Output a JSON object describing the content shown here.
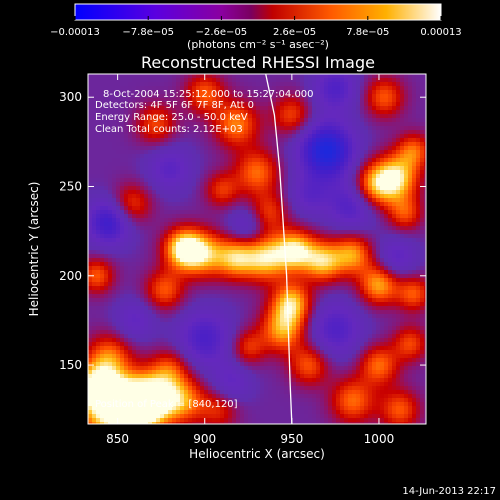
{
  "colorbar": {
    "tick_labels": [
      "−0.00013",
      "−7.8e−05",
      "−2.6e−05",
      "2.6e−05",
      "7.8e−05",
      "0.00013"
    ],
    "tick_values": [
      -0.00013,
      -7.8e-05,
      -2.6e-05,
      2.6e-05,
      7.8e-05,
      0.00013
    ],
    "range": [
      -0.00013,
      0.00013
    ],
    "units": "(photons cm⁻² s⁻¹ asec⁻²)",
    "colors": [
      "#0000ff",
      "#7a00c8",
      "#cc0000",
      "#ff6600",
      "#ffcc00",
      "#ffffff"
    ]
  },
  "chart_data": {
    "type": "heatmap",
    "title": "Reconstructed RHESSI Image",
    "xlabel": "Heliocentric X (arcsec)",
    "ylabel": "Heliocentric Y (arcsec)",
    "xlim": [
      833,
      1027
    ],
    "ylim": [
      117,
      313
    ],
    "x_ticks": [
      850,
      900,
      950,
      1000
    ],
    "y_ticks": [
      150,
      200,
      250,
      300
    ],
    "x_tick_labels": [
      "850",
      "900",
      "950",
      "1000"
    ],
    "y_tick_labels": [
      "150",
      "200",
      "250",
      "300"
    ],
    "annotations": [
      "8-Oct-2004 15:25:12.000 to 15:27:04.000",
      "Detectors: 4F 5F 6F 7F 8F, Att 0",
      "Energy Range: 25.0 - 50.0 keV",
      "Clean    Total counts: 2.12E+03"
    ],
    "peak_label": "Position of Peak = [840,120]",
    "peak_position": [
      840,
      120
    ],
    "limb_points": [
      [
        935,
        313
      ],
      [
        940,
        290
      ],
      [
        943,
        260
      ],
      [
        945,
        230
      ],
      [
        947,
        200
      ],
      [
        948,
        170
      ],
      [
        949,
        140
      ],
      [
        950,
        117
      ]
    ],
    "blobs": [
      {
        "x": 848,
        "y": 125,
        "r": 14,
        "v": 1.0
      },
      {
        "x": 862,
        "y": 127,
        "r": 10,
        "v": 0.85
      },
      {
        "x": 838,
        "y": 138,
        "r": 9,
        "v": 0.8
      },
      {
        "x": 872,
        "y": 132,
        "r": 10,
        "v": 0.7
      },
      {
        "x": 888,
        "y": 130,
        "r": 9,
        "v": 0.6
      },
      {
        "x": 845,
        "y": 155,
        "r": 9,
        "v": 0.55
      },
      {
        "x": 880,
        "y": 148,
        "r": 8,
        "v": 0.45
      },
      {
        "x": 908,
        "y": 125,
        "r": 8,
        "v": 0.4
      },
      {
        "x": 888,
        "y": 215,
        "r": 8,
        "v": 1.0
      },
      {
        "x": 900,
        "y": 212,
        "r": 9,
        "v": 0.7
      },
      {
        "x": 918,
        "y": 210,
        "r": 8,
        "v": 0.75
      },
      {
        "x": 935,
        "y": 210,
        "r": 9,
        "v": 0.85
      },
      {
        "x": 952,
        "y": 214,
        "r": 8,
        "v": 0.9
      },
      {
        "x": 968,
        "y": 208,
        "r": 8,
        "v": 0.8
      },
      {
        "x": 985,
        "y": 212,
        "r": 8,
        "v": 0.7
      },
      {
        "x": 877,
        "y": 192,
        "r": 8,
        "v": 0.55
      },
      {
        "x": 900,
        "y": 302,
        "r": 8,
        "v": 0.55
      },
      {
        "x": 918,
        "y": 285,
        "r": 9,
        "v": 0.65
      },
      {
        "x": 930,
        "y": 258,
        "r": 9,
        "v": 0.6
      },
      {
        "x": 936,
        "y": 235,
        "r": 8,
        "v": 0.5
      },
      {
        "x": 910,
        "y": 248,
        "r": 7,
        "v": 0.45
      },
      {
        "x": 872,
        "y": 285,
        "r": 8,
        "v": 0.5
      },
      {
        "x": 858,
        "y": 240,
        "r": 8,
        "v": 0.5
      },
      {
        "x": 838,
        "y": 200,
        "r": 7,
        "v": 0.55
      },
      {
        "x": 950,
        "y": 290,
        "r": 8,
        "v": 0.5
      },
      {
        "x": 997,
        "y": 250,
        "r": 9,
        "v": 0.75
      },
      {
        "x": 1010,
        "y": 255,
        "r": 9,
        "v": 0.85
      },
      {
        "x": 1020,
        "y": 270,
        "r": 7,
        "v": 0.55
      },
      {
        "x": 1015,
        "y": 235,
        "r": 7,
        "v": 0.5
      },
      {
        "x": 1003,
        "y": 300,
        "r": 8,
        "v": 0.55
      },
      {
        "x": 1000,
        "y": 195,
        "r": 8,
        "v": 0.75
      },
      {
        "x": 1020,
        "y": 190,
        "r": 7,
        "v": 0.55
      },
      {
        "x": 1000,
        "y": 150,
        "r": 8,
        "v": 0.6
      },
      {
        "x": 1018,
        "y": 162,
        "r": 7,
        "v": 0.5
      },
      {
        "x": 985,
        "y": 130,
        "r": 9,
        "v": 0.6
      },
      {
        "x": 1012,
        "y": 125,
        "r": 8,
        "v": 0.55
      },
      {
        "x": 945,
        "y": 170,
        "r": 9,
        "v": 0.75
      },
      {
        "x": 950,
        "y": 185,
        "r": 8,
        "v": 0.8
      },
      {
        "x": 960,
        "y": 150,
        "r": 8,
        "v": 0.55
      },
      {
        "x": 925,
        "y": 160,
        "r": 7,
        "v": 0.45
      },
      {
        "x": 970,
        "y": 270,
        "r": 11,
        "v": -1.0
      },
      {
        "x": 845,
        "y": 230,
        "r": 9,
        "v": -0.7
      },
      {
        "x": 900,
        "y": 165,
        "r": 11,
        "v": -0.55
      },
      {
        "x": 975,
        "y": 170,
        "r": 11,
        "v": -0.5
      },
      {
        "x": 985,
        "y": 240,
        "r": 10,
        "v": -0.55
      },
      {
        "x": 975,
        "y": 305,
        "r": 9,
        "v": -0.5
      },
      {
        "x": 925,
        "y": 228,
        "r": 8,
        "v": -0.4
      },
      {
        "x": 880,
        "y": 260,
        "r": 9,
        "v": -0.4
      },
      {
        "x": 1010,
        "y": 210,
        "r": 8,
        "v": -0.4
      },
      {
        "x": 960,
        "y": 245,
        "r": 8,
        "v": -0.35
      },
      {
        "x": 915,
        "y": 140,
        "r": 8,
        "v": -0.35
      },
      {
        "x": 860,
        "y": 175,
        "r": 8,
        "v": -0.35
      }
    ]
  },
  "footer": {
    "timestamp": "14-Jun-2013 22:17"
  }
}
